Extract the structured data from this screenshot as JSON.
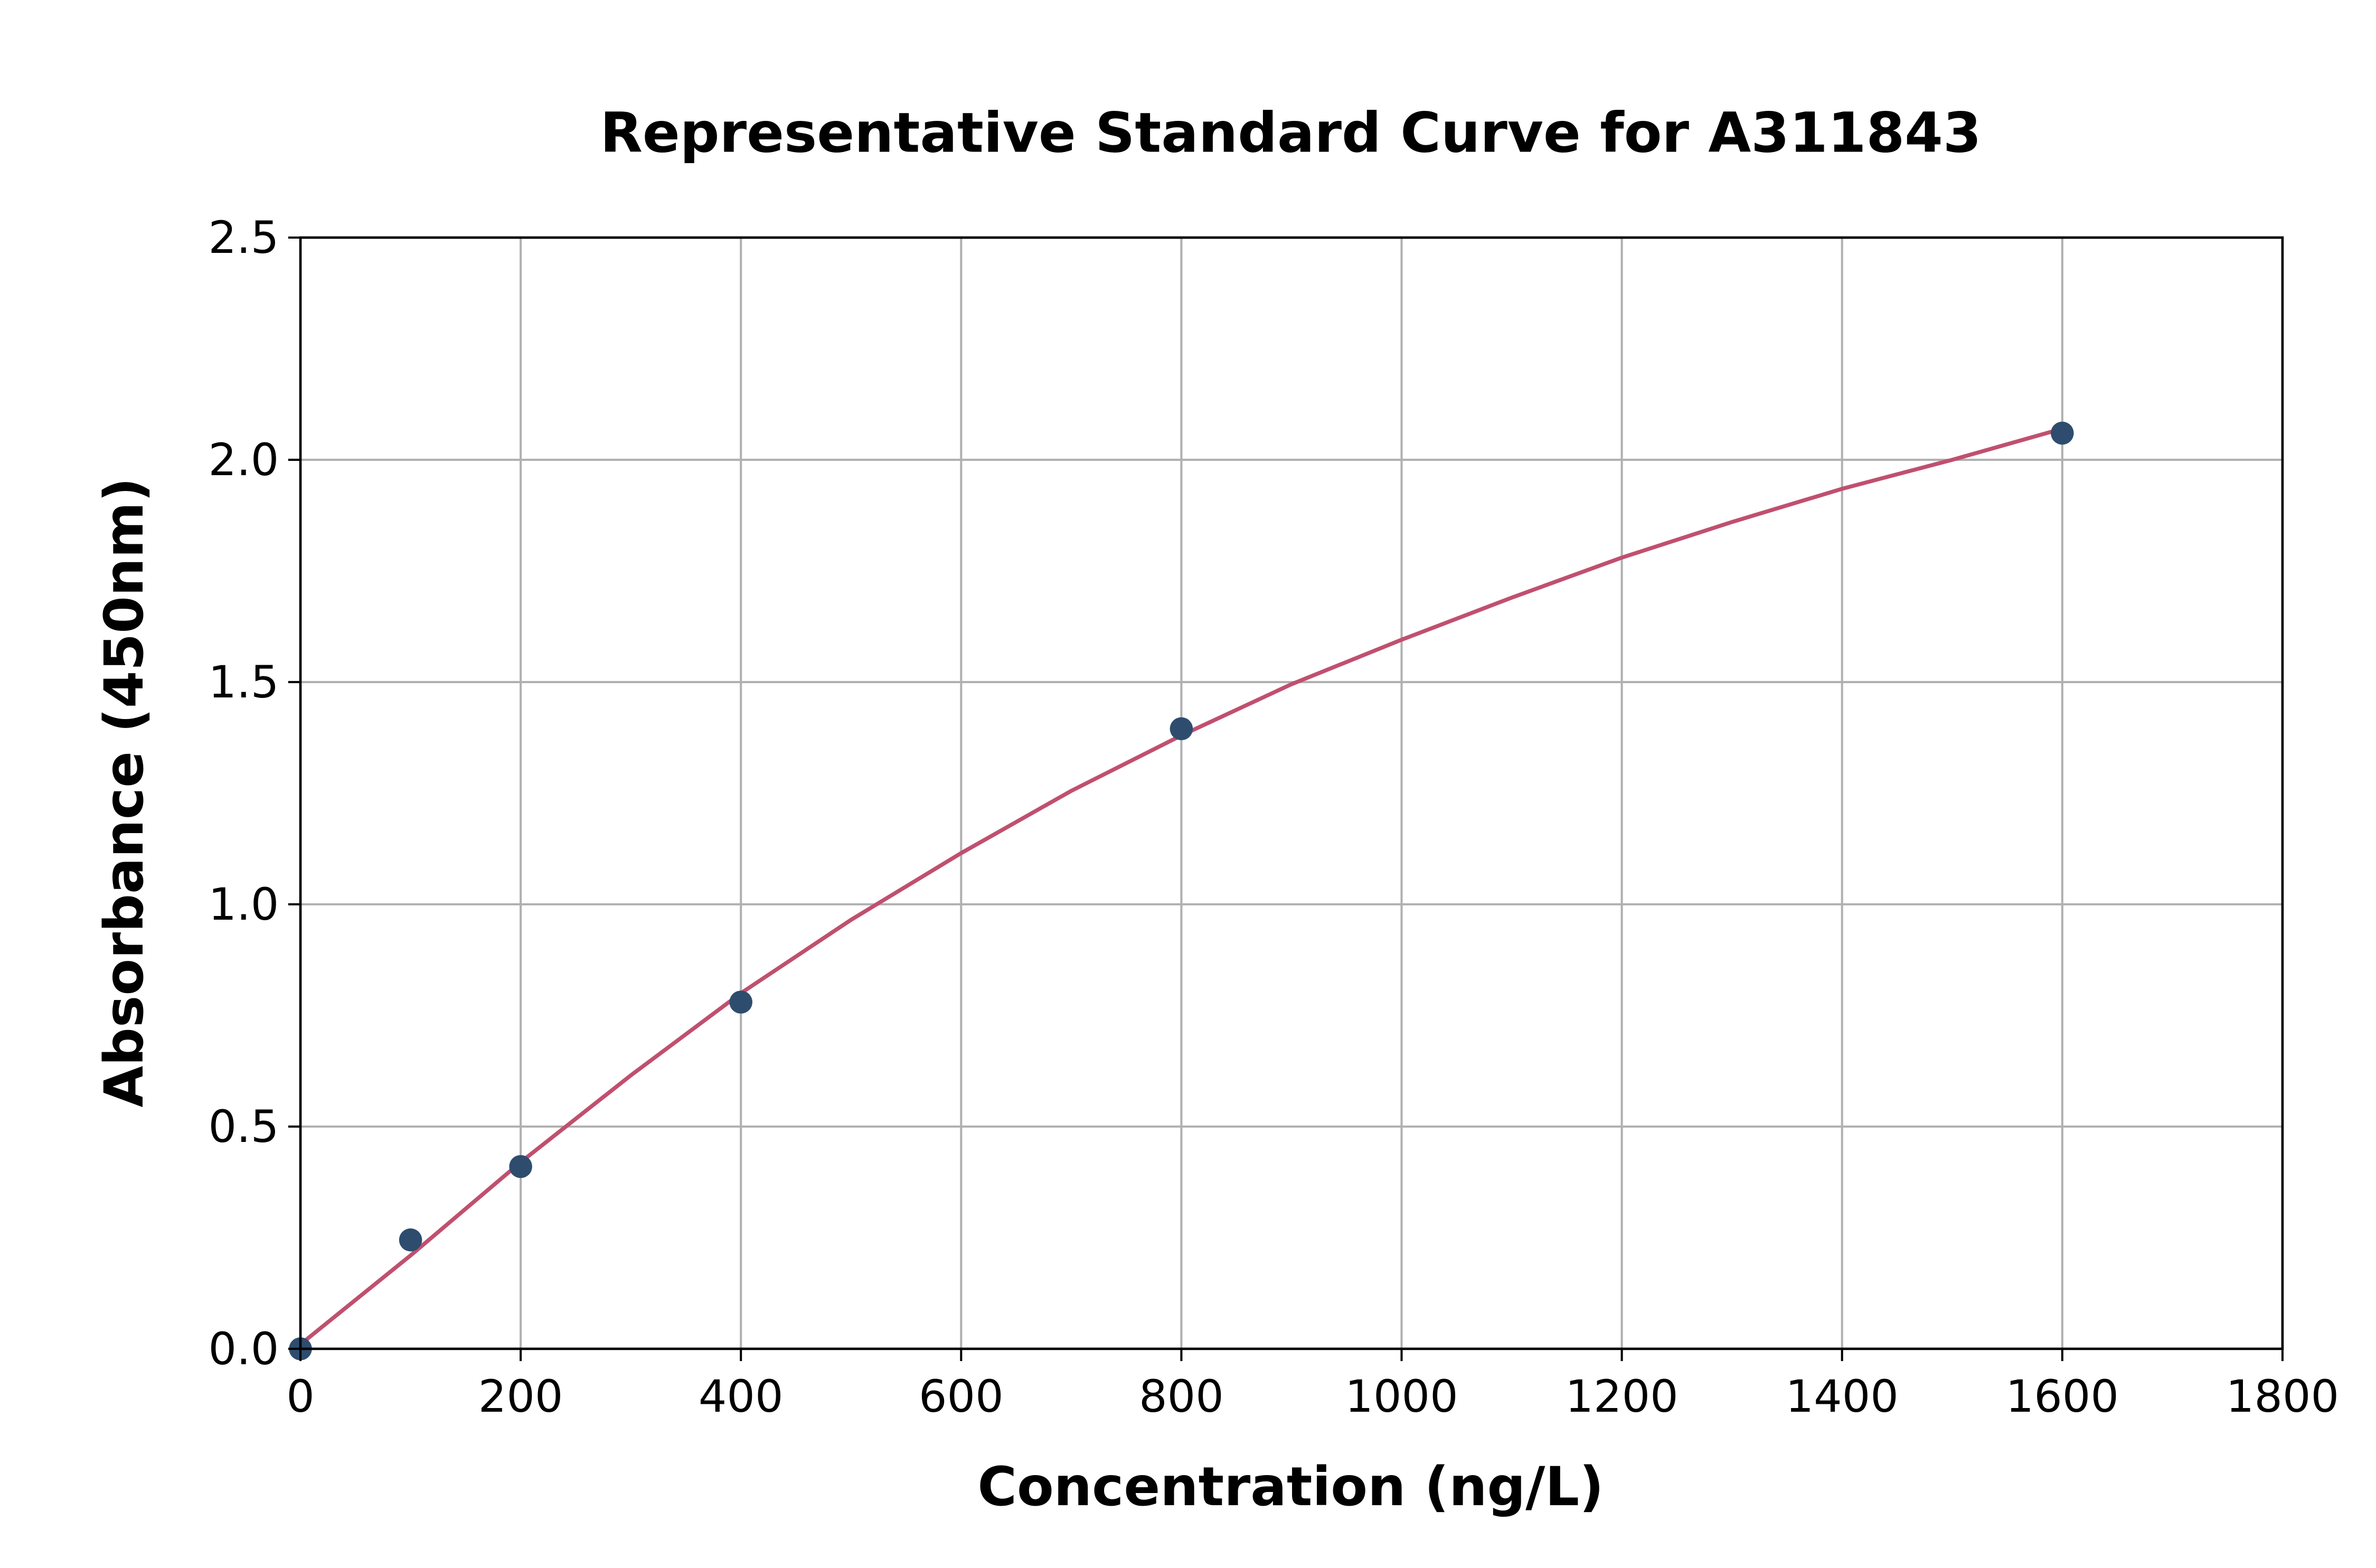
{
  "chart_data": {
    "type": "scatter",
    "title": "Representative Standard Curve for A311843",
    "xlabel": "Concentration (ng/L)",
    "ylabel": "Absorbance (450nm)",
    "xlim": [
      0,
      1800
    ],
    "ylim": [
      0,
      2.5
    ],
    "xticks": [
      "0",
      "200",
      "400",
      "600",
      "800",
      "1000",
      "1200",
      "1400",
      "1600",
      "1800"
    ],
    "yticks": [
      "0.0",
      "0.5",
      "1.0",
      "1.5",
      "2.0",
      "2.5"
    ],
    "grid": true,
    "points": {
      "x": [
        0,
        100,
        200,
        400,
        800,
        1600
      ],
      "y": [
        0.0,
        0.245,
        0.41,
        0.78,
        1.395,
        2.06
      ],
      "color": "#2e4d6e"
    },
    "fit_curve": {
      "x": [
        0,
        100,
        200,
        300,
        400,
        500,
        600,
        700,
        800,
        900,
        1000,
        1100,
        1200,
        1300,
        1400,
        1500,
        1600
      ],
      "y": [
        0.01,
        0.21,
        0.42,
        0.615,
        0.8,
        0.965,
        1.115,
        1.255,
        1.38,
        1.495,
        1.595,
        1.69,
        1.78,
        1.86,
        1.935,
        2.0,
        2.07
      ],
      "color": "#c0506f"
    }
  }
}
